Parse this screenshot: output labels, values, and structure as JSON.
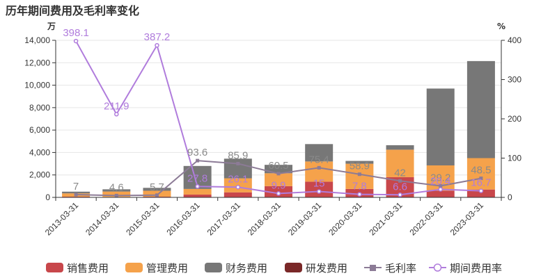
{
  "chart_data": {
    "type": "bar",
    "title": "历年期间费用及毛利率变化",
    "left_axis": {
      "unit": "万",
      "min": 0,
      "max": 14000,
      "ticks": [
        "0",
        "2,000",
        "4,000",
        "6,000",
        "8,000",
        "10,000",
        "12,000",
        "14,000"
      ]
    },
    "right_axis": {
      "unit": "%",
      "min": 0,
      "max": 400,
      "ticks": [
        "0",
        "100",
        "200",
        "300",
        "400"
      ]
    },
    "categories": [
      "2013-03-31",
      "2014-03-31",
      "2015-03-31",
      "2016-03-31",
      "2017-03-31",
      "2018-03-31",
      "2019-03-31",
      "2020-03-31",
      "2021-03-31",
      "2022-03-31",
      "2023-03-31"
    ],
    "bar_series": [
      {
        "name": "销售费用",
        "color": "#c8474b",
        "values": [
          60,
          40,
          60,
          250,
          450,
          1000,
          1400,
          750,
          1800,
          600,
          700
        ]
      },
      {
        "name": "管理费用",
        "color": "#f5a24b",
        "values": [
          300,
          480,
          530,
          500,
          1250,
          1150,
          1800,
          2250,
          2450,
          2250,
          2800
        ]
      },
      {
        "name": "财务费用",
        "color": "#777777",
        "values": [
          150,
          200,
          260,
          2050,
          1750,
          750,
          1550,
          250,
          400,
          6850,
          8650
        ]
      },
      {
        "name": "研发费用",
        "color": "#7a2828",
        "values": [
          0,
          0,
          0,
          0,
          0,
          0,
          0,
          0,
          0,
          0,
          0
        ]
      }
    ],
    "line_series": [
      {
        "name": "毛利率",
        "color": "#8c7b96",
        "marker": "square",
        "values": [
          7,
          4.6,
          5.7,
          93.6,
          85.9,
          60.5,
          75.4,
          58.9,
          42,
          29.2,
          48.5
        ],
        "labels": [
          "7",
          "4.6",
          "5.7",
          "93.6",
          "85.9",
          "60.5",
          "75.4",
          "58.9",
          "42",
          "29.2",
          "48.5"
        ]
      },
      {
        "name": "期间费用率",
        "color": "#b07cdc",
        "marker": "circle",
        "values": [
          398.1,
          211.9,
          387.2,
          27.8,
          26.1,
          9.9,
          15,
          7.8,
          6.6,
          20.4,
          16.7
        ],
        "labels": [
          "398.1",
          "211.9",
          "387.2",
          "27.8",
          "26.1",
          "9.9",
          "15",
          "7.8",
          "6.6",
          "20.4",
          "16.7"
        ]
      }
    ],
    "legend": {
      "position": "bottom",
      "items": [
        "销售费用",
        "管理费用",
        "财务费用",
        "研发费用",
        "毛利率",
        "期间费用率"
      ]
    },
    "grid": "horizontal"
  }
}
